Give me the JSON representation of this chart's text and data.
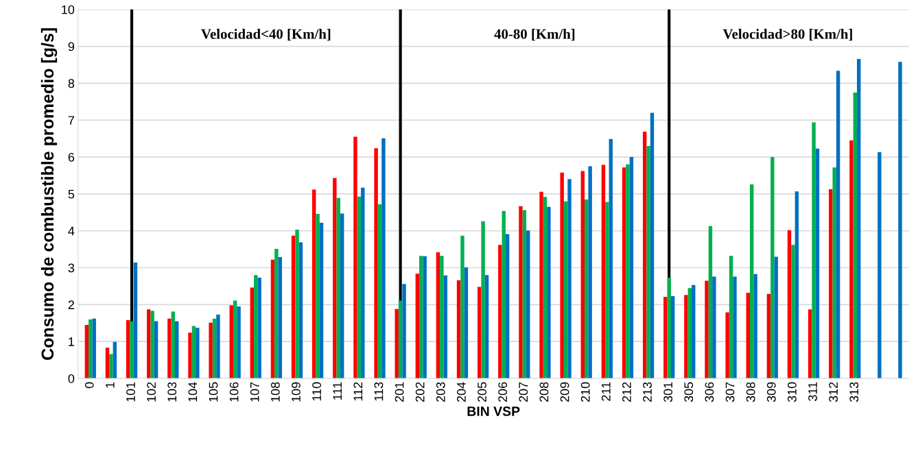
{
  "chart_data": {
    "type": "bar",
    "xlabel": "BIN VSP",
    "ylabel": "Consumo de combustible promedio [g/s]",
    "categories": [
      "0",
      "1",
      "101",
      "102",
      "103",
      "104",
      "105",
      "106",
      "107",
      "108",
      "109",
      "110",
      "111",
      "112",
      "113",
      "201",
      "202",
      "203",
      "204",
      "205",
      "206",
      "207",
      "208",
      "209",
      "210",
      "211",
      "212",
      "213",
      "301",
      "305",
      "306",
      "307",
      "308",
      "309",
      "310",
      "311",
      "312",
      "313",
      null,
      null
    ],
    "series": [
      {
        "color": "#ff0000",
        "values": [
          1.45,
          0.83,
          1.58,
          1.87,
          1.62,
          1.24,
          1.51,
          1.98,
          2.46,
          3.22,
          3.87,
          5.12,
          5.43,
          6.55,
          6.24,
          1.88,
          2.84,
          3.42,
          2.66,
          2.48,
          3.62,
          4.67,
          5.06,
          5.58,
          5.62,
          5.79,
          5.72,
          6.69,
          2.21,
          2.26,
          2.65,
          1.79,
          2.32,
          2.29,
          4.02,
          1.87,
          5.13,
          6.45,
          null,
          null
        ]
      },
      {
        "color": "#00b050",
        "values": [
          1.6,
          0.66,
          1.54,
          1.83,
          1.81,
          1.42,
          1.62,
          2.11,
          2.8,
          3.51,
          4.03,
          4.46,
          4.89,
          4.93,
          4.72,
          2.11,
          3.32,
          3.32,
          3.87,
          4.26,
          4.54,
          4.56,
          4.92,
          4.8,
          4.85,
          4.78,
          5.8,
          6.3,
          2.73,
          2.45,
          4.13,
          3.32,
          5.26,
          6.0,
          3.62,
          6.94,
          5.72,
          7.75,
          null,
          null
        ]
      },
      {
        "color": "#0070c0",
        "values": [
          1.62,
          0.99,
          3.14,
          1.55,
          1.55,
          1.37,
          1.73,
          1.95,
          2.73,
          3.29,
          3.69,
          4.22,
          4.47,
          5.17,
          6.51,
          2.56,
          3.31,
          2.79,
          3.01,
          2.8,
          3.91,
          4.01,
          4.65,
          5.4,
          5.75,
          6.49,
          6.0,
          7.2,
          2.23,
          2.53,
          2.76,
          2.76,
          2.83,
          3.3,
          5.07,
          6.23,
          8.34,
          8.66,
          6.13,
          8.58
        ]
      }
    ],
    "ylim": [
      0,
      10
    ],
    "yticks": [
      0,
      1,
      2,
      3,
      4,
      5,
      6,
      7,
      8,
      9,
      10
    ],
    "grid": "y",
    "ref_lines": [
      {
        "axis": "x",
        "value": "101",
        "color": "#000000"
      },
      {
        "axis": "x",
        "value": "201",
        "color": "#000000"
      },
      {
        "axis": "x",
        "value": "301",
        "color": "#000000"
      }
    ],
    "annotations": [
      "Velocidad<40 [Km/h]",
      "40-80 [Km/h]",
      "Velocidad>80 [Km/h]"
    ]
  }
}
